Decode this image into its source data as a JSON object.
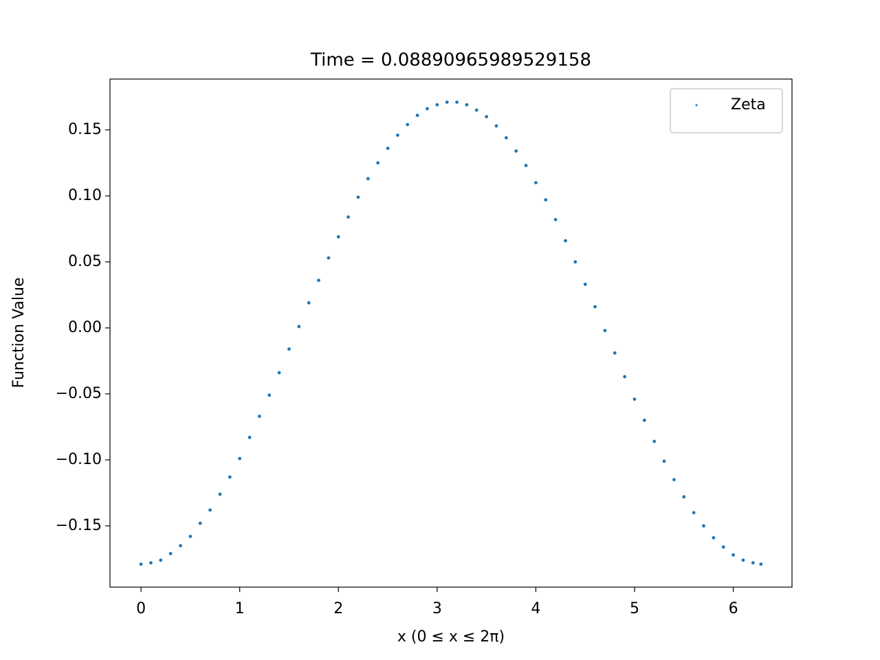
{
  "chart_data": {
    "type": "scatter",
    "title": "Time = 0.08890965989529158",
    "x_label": "x (0 ≤ x ≤ 2π)",
    "y_label": "Function Value",
    "xlim": [
      -0.314,
      6.595
    ],
    "ylim": [
      -0.1964,
      0.1885
    ],
    "xticks": [
      0,
      1,
      2,
      3,
      4,
      5,
      6
    ],
    "yticks": [
      {
        "value": -0.15,
        "label": "−0.15"
      },
      {
        "value": -0.1,
        "label": "−0.10"
      },
      {
        "value": -0.05,
        "label": "−0.05"
      },
      {
        "value": 0,
        "label": "0.00"
      },
      {
        "value": 0.05,
        "label": "0.05"
      },
      {
        "value": 0.1,
        "label": "0.10"
      },
      {
        "value": 0.15,
        "label": "0.15"
      }
    ],
    "legend_position": "upper right",
    "grid": false,
    "series": [
      {
        "name": "Zeta",
        "color": "#1f77b4",
        "x": [
          0,
          0.1,
          0.2,
          0.3,
          0.4,
          0.5,
          0.6,
          0.7,
          0.8,
          0.9,
          1.0,
          1.1,
          1.2,
          1.3,
          1.4,
          1.5,
          1.6,
          1.7,
          1.8,
          1.9,
          2.0,
          2.1,
          2.2,
          2.3,
          2.4,
          2.5,
          2.6,
          2.7,
          2.8,
          2.9,
          3.0,
          3.1,
          3.2,
          3.3,
          3.4,
          3.5,
          3.6,
          3.7,
          3.8,
          3.9,
          4.0,
          4.1,
          4.2,
          4.3,
          4.4,
          4.5,
          4.6,
          4.7,
          4.8,
          4.9,
          5.0,
          5.1,
          5.2,
          5.3,
          5.4,
          5.5,
          5.6,
          5.7,
          5.8,
          5.9,
          6.0,
          6.1,
          6.2,
          6.28
        ],
        "values": [
          -0.179,
          -0.178,
          -0.176,
          -0.171,
          -0.165,
          -0.158,
          -0.148,
          -0.138,
          -0.126,
          -0.113,
          -0.099,
          -0.083,
          -0.067,
          -0.051,
          -0.034,
          -0.016,
          0.001,
          0.019,
          0.036,
          0.053,
          0.069,
          0.084,
          0.099,
          0.113,
          0.125,
          0.136,
          0.146,
          0.154,
          0.161,
          0.166,
          0.169,
          0.171,
          0.171,
          0.169,
          0.165,
          0.16,
          0.153,
          0.144,
          0.134,
          0.123,
          0.11,
          0.097,
          0.082,
          0.066,
          0.05,
          0.033,
          0.016,
          -0.002,
          -0.019,
          -0.037,
          -0.054,
          -0.07,
          -0.086,
          -0.101,
          -0.115,
          -0.128,
          -0.14,
          -0.15,
          -0.159,
          -0.166,
          -0.172,
          -0.176,
          -0.178,
          -0.179
        ]
      }
    ]
  }
}
